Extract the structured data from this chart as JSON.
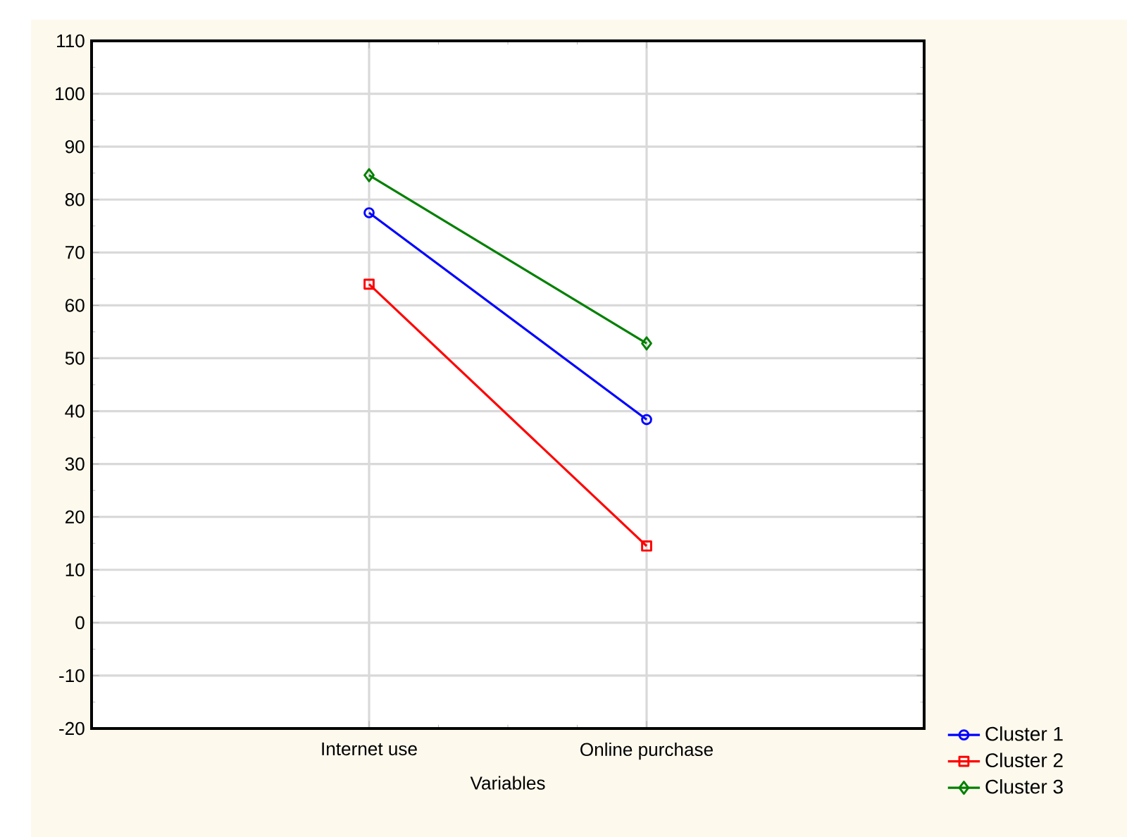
{
  "chart_data": {
    "type": "line",
    "xlabel": "Variables",
    "categories": [
      "Internet use",
      "Online purchase"
    ],
    "series": [
      {
        "name": "Cluster 1",
        "color": "#0000ff",
        "marker": "circle",
        "values": [
          77.5,
          38.4
        ]
      },
      {
        "name": "Cluster 2",
        "color": "#ff0000",
        "marker": "square",
        "values": [
          64.0,
          14.5
        ]
      },
      {
        "name": "Cluster 3",
        "color": "#008000",
        "marker": "diamond",
        "values": [
          84.6,
          52.8
        ]
      }
    ],
    "ylim": [
      -20,
      110
    ],
    "yticks": [
      -20,
      -10,
      0,
      10,
      20,
      30,
      40,
      50,
      60,
      70,
      80,
      90,
      100,
      110
    ],
    "grid": true,
    "legend": "bottom right",
    "line_style": "solid"
  }
}
